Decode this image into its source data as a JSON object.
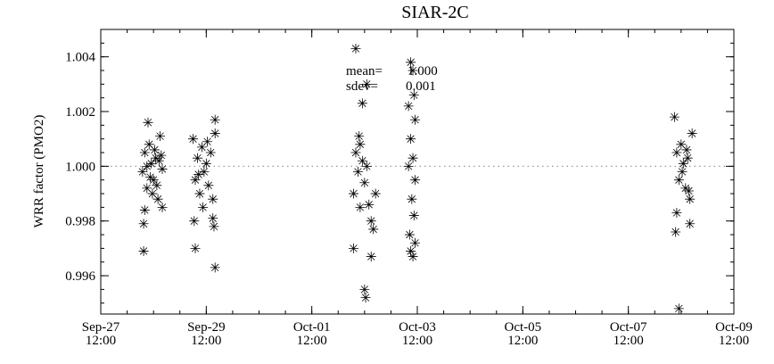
{
  "chart_data": {
    "type": "scatter",
    "title": "SIAR-2C",
    "xlabel": "",
    "ylabel": "WRR factor (PMO2)",
    "xlim": [
      "Sep-27 12:00",
      "Oct-09 12:00"
    ],
    "ylim": [
      0.9946,
      1.005
    ],
    "x_ticks": [
      {
        "date": "Sep-27",
        "time": "12:00"
      },
      {
        "date": "Sep-29",
        "time": "12:00"
      },
      {
        "date": "Oct-01",
        "time": "12:00"
      },
      {
        "date": "Oct-03",
        "time": "12:00"
      },
      {
        "date": "Oct-05",
        "time": "12:00"
      },
      {
        "date": "Oct-07",
        "time": "12:00"
      },
      {
        "date": "Oct-09",
        "time": "12:00"
      }
    ],
    "y_ticks": [
      "0.996",
      "0.998",
      "1.000",
      "1.002",
      "1.004"
    ],
    "reference_line": 1.0,
    "marker": "asterisk",
    "grid": false,
    "annotation": {
      "mean_label": "mean=",
      "mean_value": "1.000",
      "sdev_label": "sdev=",
      "sdev_value": "0.001"
    },
    "points": [
      [
        "Sep-28 07:00",
        0.9998
      ],
      [
        "Sep-28 08:00",
        1.0005
      ],
      [
        "Sep-28 09:00",
        0.9992
      ],
      [
        "Sep-28 10:00",
        1.0008
      ],
      [
        "Sep-28 11:00",
        1.0001
      ],
      [
        "Sep-28 12:00",
        0.9995
      ],
      [
        "Sep-28 13:00",
        1.0003
      ],
      [
        "Sep-28 14:00",
        0.9988
      ],
      [
        "Sep-28 15:00",
        1.0011
      ],
      [
        "Sep-28 16:00",
        0.9999
      ],
      [
        "Sep-28 09:30",
        1.0016
      ],
      [
        "Sep-28 08:00",
        0.9984
      ],
      [
        "Sep-28 07:30",
        0.9969
      ],
      [
        "Sep-28 07:30",
        0.9979
      ],
      [
        "Sep-28 16:00",
        0.9985
      ],
      [
        "Sep-28 12:30",
        1.0006
      ],
      [
        "Sep-28 10:30",
        0.9996
      ],
      [
        "Sep-28 14:30",
        1.0002
      ],
      [
        "Sep-28 11:30",
        0.999
      ],
      [
        "Sep-28 09:00",
        1.0
      ],
      [
        "Sep-28 13:30",
        0.9993
      ],
      [
        "Sep-28 15:30",
        1.0004
      ],
      [
        "Sep-29 06:00",
        1.001
      ],
      [
        "Sep-29 07:00",
        0.9995
      ],
      [
        "Sep-29 08:00",
        1.0003
      ],
      [
        "Sep-29 09:00",
        0.999
      ],
      [
        "Sep-29 10:00",
        1.0007
      ],
      [
        "Sep-29 11:00",
        0.9998
      ],
      [
        "Sep-29 12:00",
        1.0001
      ],
      [
        "Sep-29 13:00",
        0.9993
      ],
      [
        "Sep-29 14:00",
        1.0005
      ],
      [
        "Sep-29 15:00",
        0.9988
      ],
      [
        "Sep-29 16:00",
        1.0012
      ],
      [
        "Sep-29 16:00",
        1.0017
      ],
      [
        "Sep-29 06:30",
        0.998
      ],
      [
        "Sep-29 07:00",
        0.997
      ],
      [
        "Sep-29 16:00",
        0.9963
      ],
      [
        "Sep-29 15:30",
        0.9978
      ],
      [
        "Sep-29 15:00",
        0.9981
      ],
      [
        "Sep-29 10:30",
        0.9985
      ],
      [
        "Sep-29 12:30",
        1.0009
      ],
      [
        "Sep-29 08:30",
        0.9997
      ],
      [
        "Oct-02 07:00",
        0.999
      ],
      [
        "Oct-02 08:00",
        1.0005
      ],
      [
        "Oct-02 09:00",
        0.9998
      ],
      [
        "Oct-02 10:00",
        1.0008
      ],
      [
        "Oct-02 11:00",
        1.0002
      ],
      [
        "Oct-02 12:00",
        0.9994
      ],
      [
        "Oct-02 13:00",
        1.0
      ],
      [
        "Oct-02 14:00",
        0.9986
      ],
      [
        "Oct-02 15:00",
        0.998
      ],
      [
        "Oct-02 16:00",
        0.9977
      ],
      [
        "Oct-02 17:00",
        0.999
      ],
      [
        "Oct-02 08:00",
        1.0043
      ],
      [
        "Oct-02 12:00",
        0.9955
      ],
      [
        "Oct-02 12:30",
        0.9952
      ],
      [
        "Oct-02 15:00",
        0.9967
      ],
      [
        "Oct-02 07:00",
        0.997
      ],
      [
        "Oct-02 11:00",
        1.0023
      ],
      [
        "Oct-02 13:00",
        1.003
      ],
      [
        "Oct-02 10:00",
        0.9985
      ],
      [
        "Oct-02 09:30",
        1.0011
      ],
      [
        "Oct-03 08:00",
        1.0022
      ],
      [
        "Oct-03 09:00",
        1.0038
      ],
      [
        "Oct-03 10:00",
        1.0035
      ],
      [
        "Oct-03 11:00",
        1.0017
      ],
      [
        "Oct-03 09:00",
        1.001
      ],
      [
        "Oct-03 10:00",
        1.0003
      ],
      [
        "Oct-03 11:00",
        0.9995
      ],
      [
        "Oct-03 09:30",
        0.9988
      ],
      [
        "Oct-03 10:30",
        0.9982
      ],
      [
        "Oct-03 08:30",
        0.9975
      ],
      [
        "Oct-03 09:00",
        0.9969
      ],
      [
        "Oct-03 10:00",
        0.9967
      ],
      [
        "Oct-03 11:00",
        0.9972
      ],
      [
        "Oct-03 08:00",
        1.0
      ],
      [
        "Oct-03 10:30",
        1.0026
      ],
      [
        "Oct-08 09:00",
        1.0018
      ],
      [
        "Oct-08 10:00",
        1.0005
      ],
      [
        "Oct-08 11:00",
        0.9995
      ],
      [
        "Oct-08 12:00",
        1.0008
      ],
      [
        "Oct-08 13:00",
        1.0001
      ],
      [
        "Oct-08 14:00",
        0.9992
      ],
      [
        "Oct-08 15:00",
        1.0003
      ],
      [
        "Oct-08 16:00",
        0.9988
      ],
      [
        "Oct-08 17:00",
        1.0012
      ],
      [
        "Oct-08 09:30",
        0.9976
      ],
      [
        "Oct-08 10:00",
        0.9983
      ],
      [
        "Oct-08 16:00",
        0.9979
      ],
      [
        "Oct-08 11:00",
        0.9948
      ],
      [
        "Oct-08 12:30",
        0.9998
      ],
      [
        "Oct-08 14:30",
        1.0006
      ],
      [
        "Oct-08 15:30",
        0.9991
      ]
    ]
  }
}
